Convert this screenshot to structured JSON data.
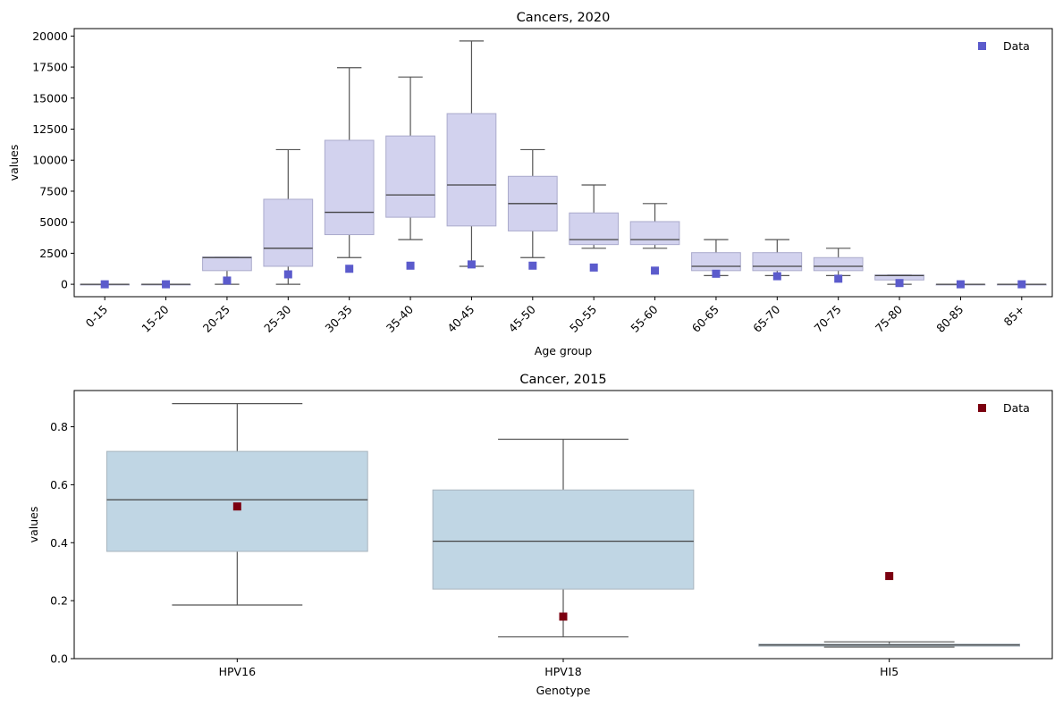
{
  "chart_data": [
    {
      "type": "box",
      "title": "Cancers, 2020",
      "xlabel": "Age group",
      "ylabel": "values",
      "ylim": [
        -1000,
        20600
      ],
      "yticks": [
        0,
        2500,
        5000,
        7500,
        10000,
        12500,
        15000,
        17500,
        20000
      ],
      "box_color": "#d2d2ee",
      "box_edge": "#aaaacc",
      "marker_color": "#5b5bcc",
      "legend": {
        "label": "Data",
        "position": "top-right"
      },
      "categories": [
        "0-15",
        "15-20",
        "20-25",
        "25-30",
        "30-35",
        "35-40",
        "40-45",
        "45-50",
        "50-55",
        "55-60",
        "60-65",
        "65-70",
        "70-75",
        "75-80",
        "80-85",
        "85+"
      ],
      "boxes": [
        {
          "whislo": 0,
          "q1": 0,
          "med": 0,
          "q3": 0,
          "whishi": 0
        },
        {
          "whislo": 0,
          "q1": 0,
          "med": 0,
          "q3": 0,
          "whishi": 0
        },
        {
          "whislo": 0,
          "q1": 1100,
          "med": 2150,
          "q3": 2200,
          "whishi": 2200
        },
        {
          "whislo": 0,
          "q1": 1450,
          "med": 2900,
          "q3": 6850,
          "whishi": 10850
        },
        {
          "whislo": 2150,
          "q1": 4000,
          "med": 5800,
          "q3": 11600,
          "whishi": 17450
        },
        {
          "whislo": 3600,
          "q1": 5400,
          "med": 7200,
          "q3": 11950,
          "whishi": 16700
        },
        {
          "whislo": 1450,
          "q1": 4700,
          "med": 8000,
          "q3": 13750,
          "whishi": 19600
        },
        {
          "whislo": 2150,
          "q1": 4300,
          "med": 6500,
          "q3": 8700,
          "whishi": 10850
        },
        {
          "whislo": 2900,
          "q1": 3200,
          "med": 3600,
          "q3": 5750,
          "whishi": 8000
        },
        {
          "whislo": 2900,
          "q1": 3200,
          "med": 3600,
          "q3": 5050,
          "whishi": 6500
        },
        {
          "whislo": 700,
          "q1": 1100,
          "med": 1450,
          "q3": 2550,
          "whishi": 3600
        },
        {
          "whislo": 700,
          "q1": 1100,
          "med": 1450,
          "q3": 2550,
          "whishi": 3600
        },
        {
          "whislo": 700,
          "q1": 1100,
          "med": 1450,
          "q3": 2150,
          "whishi": 2900
        },
        {
          "whislo": 0,
          "q1": 350,
          "med": 700,
          "q3": 750,
          "whishi": 750
        },
        {
          "whislo": 0,
          "q1": 0,
          "med": 0,
          "q3": 0,
          "whishi": 0
        },
        {
          "whislo": 0,
          "q1": 0,
          "med": 0,
          "q3": 0,
          "whishi": 0
        }
      ],
      "data_points": [
        0,
        0,
        300,
        800,
        1250,
        1500,
        1600,
        1500,
        1350,
        1100,
        850,
        650,
        450,
        100,
        0,
        0
      ]
    },
    {
      "type": "box",
      "title": "Cancer, 2015",
      "xlabel": "Genotype",
      "ylabel": "values",
      "ylim": [
        0,
        0.925
      ],
      "yticks": [
        0.0,
        0.2,
        0.4,
        0.6,
        0.8
      ],
      "ytick_labels": [
        "0.0",
        "0.2",
        "0.4",
        "0.6",
        "0.8"
      ],
      "box_color": "#c0d6e4",
      "box_edge": "#a8b4be",
      "marker_color": "#7b0010",
      "legend": {
        "label": "Data",
        "position": "top-right"
      },
      "categories": [
        "HPV16",
        "HPV18",
        "HI5"
      ],
      "boxes": [
        {
          "whislo": 0.185,
          "q1": 0.37,
          "med": 0.548,
          "q3": 0.715,
          "whishi": 0.88
        },
        {
          "whislo": 0.075,
          "q1": 0.24,
          "med": 0.405,
          "q3": 0.582,
          "whishi": 0.757
        },
        {
          "whislo": 0.04,
          "q1": 0.043,
          "med": 0.047,
          "q3": 0.05,
          "whishi": 0.058
        }
      ],
      "data_points": [
        0.525,
        0.145,
        0.285
      ]
    }
  ]
}
